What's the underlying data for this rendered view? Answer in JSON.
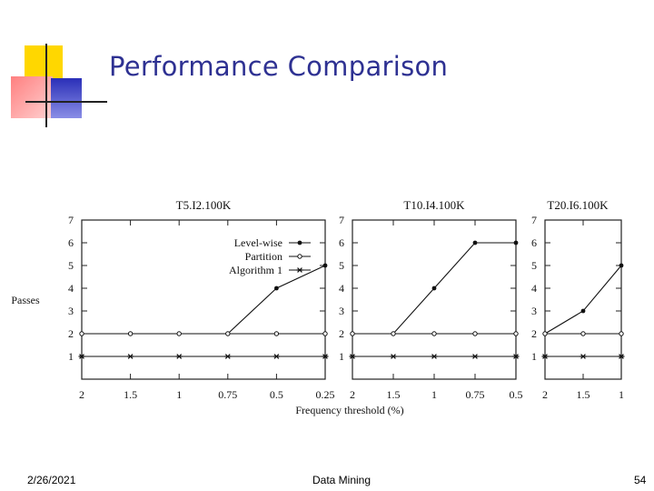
{
  "slide": {
    "title": "Performance Comparison",
    "date": "2/26/2021",
    "course": "Data Mining",
    "page_number": "54",
    "colors": {
      "title": "#2e3192",
      "deco_yellow": "#ffd700",
      "deco_red": "#ff4d4d",
      "deco_blue": "#3b3fc4"
    }
  },
  "chart_data": [
    {
      "type": "line",
      "title": "T5.I2.100K",
      "ylabel": "Passes",
      "xlabel": "Frequency threshold (%)",
      "categories": [
        "2",
        "1.5",
        "1",
        "0.75",
        "0.5",
        "0.25"
      ],
      "x": [
        2,
        1.5,
        1,
        0.75,
        0.5,
        0.25
      ],
      "ylim": [
        1,
        7
      ],
      "yticks": [
        1,
        2,
        3,
        4,
        5,
        6,
        7
      ],
      "legend_position": "top-right",
      "series": [
        {
          "name": "Level-wise",
          "marker": "dot",
          "values": [
            2,
            2,
            2,
            2,
            4,
            5
          ]
        },
        {
          "name": "Partition",
          "marker": "circle",
          "values": [
            2,
            2,
            2,
            2,
            2,
            2
          ]
        },
        {
          "name": "Algorithm 1",
          "marker": "star",
          "values": [
            1,
            1,
            1,
            1,
            1,
            1
          ]
        }
      ]
    },
    {
      "type": "line",
      "title": "T10.I4.100K",
      "categories": [
        "2",
        "1.5",
        "1",
        "0.75",
        "0.5"
      ],
      "x": [
        2,
        1.5,
        1,
        0.75,
        0.5
      ],
      "ylim": [
        1,
        7
      ],
      "yticks": [
        1,
        2,
        3,
        4,
        5,
        6,
        7
      ],
      "series": [
        {
          "marker": "dot",
          "values": [
            2,
            2,
            4,
            6,
            6
          ]
        },
        {
          "marker": "circle",
          "values": [
            2,
            2,
            2,
            2,
            2
          ]
        },
        {
          "marker": "star",
          "values": [
            1,
            1,
            1,
            1,
            1
          ]
        }
      ]
    },
    {
      "type": "line",
      "title": "T20.I6.100K",
      "categories": [
        "2",
        "1.5",
        "1"
      ],
      "x": [
        2,
        1.5,
        1
      ],
      "ylim": [
        1,
        7
      ],
      "yticks": [
        1,
        2,
        3,
        4,
        5,
        6,
        7
      ],
      "series": [
        {
          "marker": "dot",
          "values": [
            2,
            3,
            5
          ]
        },
        {
          "marker": "circle",
          "values": [
            2,
            2,
            2
          ]
        },
        {
          "marker": "star",
          "values": [
            1,
            1,
            1
          ]
        }
      ]
    }
  ]
}
